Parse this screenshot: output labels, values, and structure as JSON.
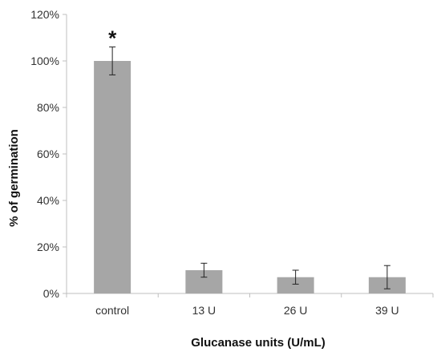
{
  "chart_data": {
    "type": "bar",
    "title": "",
    "xlabel": "Glucanase units (U/mL)",
    "ylabel": "% of germination",
    "categories": [
      "control",
      "13 U",
      "26 U",
      "39 U"
    ],
    "values": [
      100,
      10,
      7,
      7
    ],
    "error": [
      6,
      3,
      3,
      5
    ],
    "ylim": [
      0,
      120
    ],
    "yticks": [
      0,
      20,
      40,
      60,
      80,
      100,
      120
    ],
    "ytick_labels": [
      "0%",
      "20%",
      "40%",
      "60%",
      "80%",
      "100%",
      "120%"
    ],
    "grid": false,
    "legend": "none",
    "bar_color": "#a6a6a6",
    "annotations": [
      {
        "category": "control",
        "text": "*"
      }
    ]
  }
}
